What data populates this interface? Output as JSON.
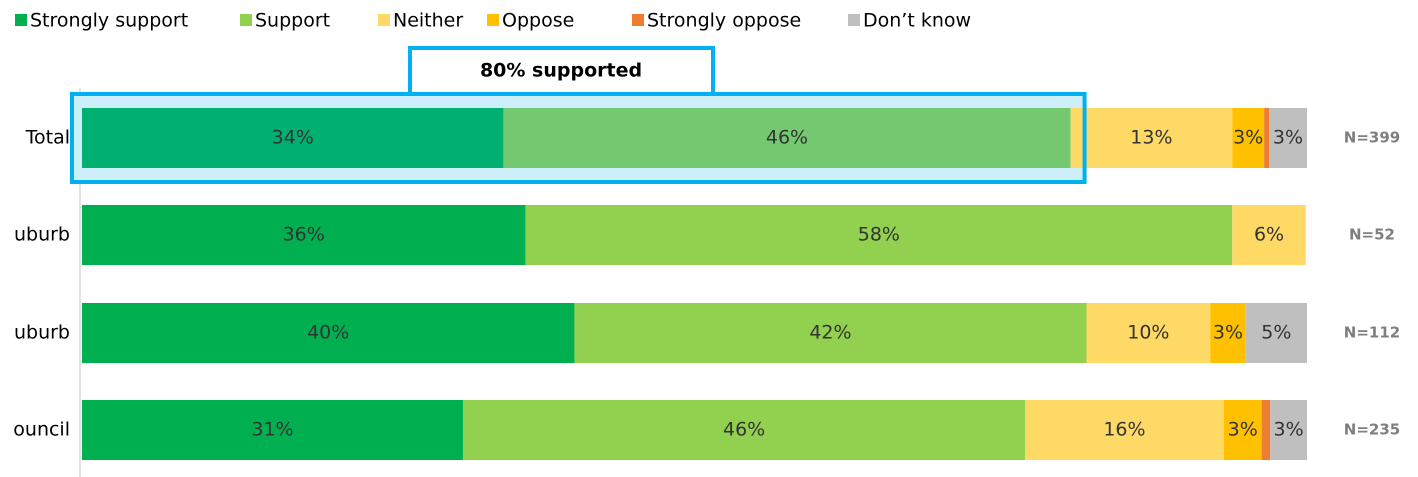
{
  "chart_data": {
    "type": "stacked-bar-horizontal",
    "categories": [
      "Total",
      "uburb",
      "uburb",
      "ouncil"
    ],
    "series": [
      {
        "name": "Strongly support",
        "color": "#00b050",
        "values": [
          34.4,
          36.2,
          40.2,
          31.1
        ],
        "value_labels": [
          "34%",
          "36%",
          "40%",
          "31%"
        ]
      },
      {
        "name": "Support",
        "color": "#92d050",
        "values": [
          46.3,
          57.7,
          41.8,
          45.9
        ],
        "value_labels": [
          "46%",
          "58%",
          "42%",
          "46%"
        ]
      },
      {
        "name": "Neither",
        "color": "#ffd966",
        "values": [
          13.2,
          6.0,
          10.1,
          16.2
        ],
        "value_labels": [
          "13%",
          "6%",
          "10%",
          "16%"
        ]
      },
      {
        "name": "Oppose",
        "color": "#ffc000",
        "values": [
          2.6,
          0,
          2.9,
          3.1
        ],
        "value_labels": [
          "3%",
          null,
          "3%",
          "3%"
        ]
      },
      {
        "name": "Strongly oppose",
        "color": "#ed7d31",
        "values": [
          0.4,
          0,
          0,
          0.7
        ],
        "value_labels": [
          null,
          null,
          null,
          null
        ]
      },
      {
        "name": "Don’t know",
        "color": "#bfbfbf",
        "values": [
          3.1,
          0,
          5.0,
          3.0
        ],
        "value_labels": [
          "3%",
          null,
          "5%",
          "3%"
        ]
      }
    ],
    "n_labels": [
      "N=399",
      "N=52",
      "N=112",
      "N=235"
    ],
    "annotation": "80% supported",
    "xlim": [
      0,
      100
    ],
    "legend": "top-left"
  }
}
